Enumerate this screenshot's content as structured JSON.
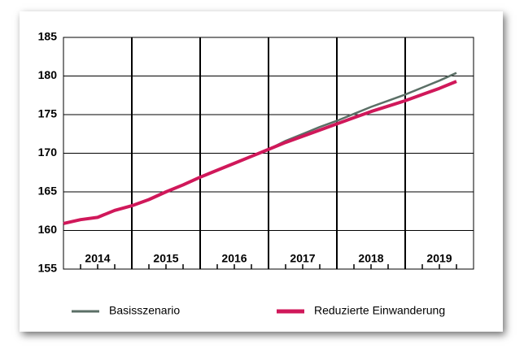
{
  "chart_data": {
    "type": "line",
    "x": [
      2013.5,
      2013.75,
      2014.0,
      2014.25,
      2014.5,
      2014.75,
      2015.0,
      2015.25,
      2015.5,
      2015.75,
      2016.0,
      2016.25,
      2016.5,
      2016.75,
      2017.0,
      2017.25,
      2017.5,
      2017.75,
      2018.0,
      2018.25,
      2018.5,
      2018.75,
      2019.0,
      2019.25
    ],
    "series": [
      {
        "name": "Basisszenario",
        "color": "#5b6f66",
        "values": [
          160.9,
          161.4,
          161.7,
          162.6,
          163.2,
          164.0,
          165.0,
          165.9,
          166.9,
          167.8,
          168.7,
          169.6,
          170.5,
          171.6,
          172.5,
          173.4,
          174.2,
          175.1,
          176.0,
          176.8,
          177.6,
          178.5,
          179.4,
          180.4
        ]
      },
      {
        "name": "Reduzierte Einwanderung",
        "color": "#d0185a",
        "values": [
          160.9,
          161.4,
          161.7,
          162.6,
          163.2,
          164.0,
          165.0,
          165.9,
          166.9,
          167.8,
          168.7,
          169.6,
          170.5,
          171.4,
          172.2,
          173.0,
          173.8,
          174.6,
          175.4,
          176.1,
          176.8,
          177.6,
          178.4,
          179.3
        ]
      }
    ],
    "xlim": [
      2013.5,
      2019.5
    ],
    "xticks": [
      2014,
      2015,
      2016,
      2017,
      2018,
      2019
    ],
    "ylim": [
      155,
      185
    ],
    "yticks": [
      155,
      160,
      165,
      170,
      175,
      180,
      185
    ],
    "grid": true
  }
}
